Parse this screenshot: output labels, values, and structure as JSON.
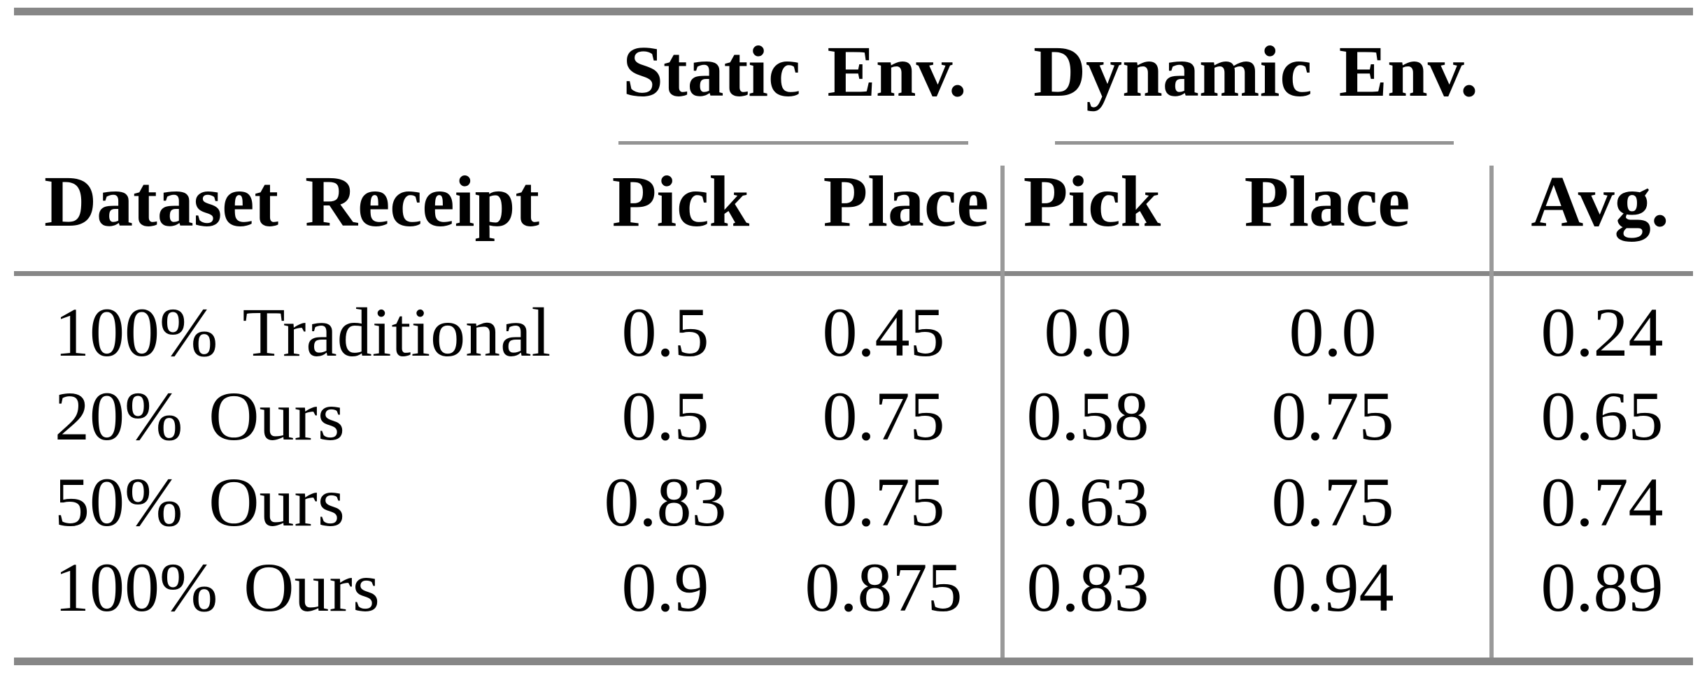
{
  "table": {
    "group_headers": [
      {
        "label": "Static Env."
      },
      {
        "label": "Dynamic Env."
      }
    ],
    "columns": [
      "Dataset Receipt",
      "Pick",
      "Place",
      "Pick",
      "Place",
      "Avg."
    ],
    "rows": [
      {
        "label": "100% Traditional",
        "values": [
          "0.5",
          "0.45",
          "0.0",
          "0.0",
          "0.24"
        ]
      },
      {
        "label": "20% Ours",
        "values": [
          "0.5",
          "0.75",
          "0.58",
          "0.75",
          "0.65"
        ]
      },
      {
        "label": "50% Ours",
        "values": [
          "0.83",
          "0.75",
          "0.63",
          "0.75",
          "0.74"
        ]
      },
      {
        "label": "100% Ours",
        "values": [
          "0.9",
          "0.875",
          "0.83",
          "0.94",
          "0.89"
        ]
      }
    ]
  },
  "colors": {
    "text": "#000000",
    "background": "#ffffff",
    "rule_thick": "#878787",
    "rule_thin": "#949494",
    "divider": "#9a9a9a"
  }
}
